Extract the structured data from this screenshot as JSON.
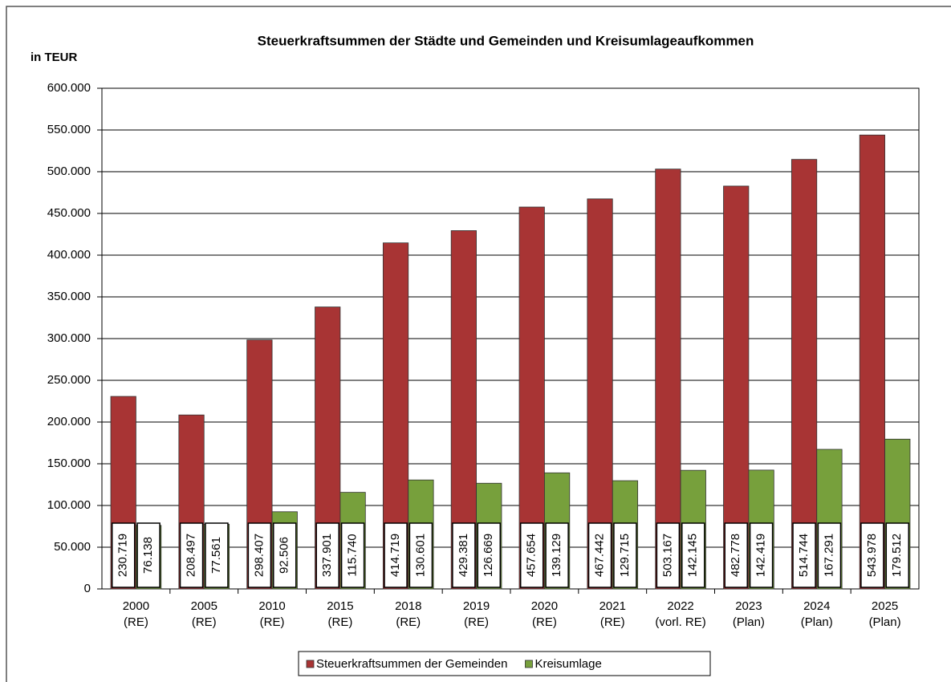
{
  "chart_data": {
    "type": "bar",
    "title": "Steuerkraftsummen der Städte und Gemeinden und Kreisumlageaufkommen",
    "y_axis_label": "in TEUR",
    "categories": [
      [
        "2000",
        "(RE)"
      ],
      [
        "2005",
        "(RE)"
      ],
      [
        "2010",
        "(RE)"
      ],
      [
        "2015",
        "(RE)"
      ],
      [
        "2018",
        "(RE)"
      ],
      [
        "2019",
        "(RE)"
      ],
      [
        "2020",
        "(RE)"
      ],
      [
        "2021",
        "(RE)"
      ],
      [
        "2022",
        "(vorl. RE)"
      ],
      [
        "2023",
        "(Plan)"
      ],
      [
        "2024",
        "(Plan)"
      ],
      [
        "2025",
        "(Plan)"
      ]
    ],
    "series": [
      {
        "name": "Steuerkraftsummen der Gemeinden",
        "color": "#a83434",
        "values": [
          230719,
          208497,
          298407,
          337901,
          414719,
          429381,
          457654,
          467442,
          503167,
          482778,
          514744,
          543978
        ],
        "value_labels": [
          "230.719",
          "208.497",
          "298.407",
          "337.901",
          "414.719",
          "429.381",
          "457.654",
          "467.442",
          "503.167",
          "482.778",
          "514.744",
          "543.978"
        ]
      },
      {
        "name": "Kreisumlage",
        "color": "#77a03c",
        "values": [
          76138,
          77561,
          92506,
          115740,
          130601,
          126669,
          139129,
          129715,
          142145,
          142419,
          167291,
          179512
        ],
        "value_labels": [
          "76.138",
          "77.561",
          "92.506",
          "115.740",
          "130.601",
          "126.669",
          "139.129",
          "129.715",
          "142.145",
          "142.419",
          "167.291",
          "179.512"
        ]
      }
    ],
    "ylim": [
      0,
      600000
    ],
    "yticks": [
      0,
      {
        "value": 50000,
        "label": "50.000"
      },
      {
        "value": 100000,
        "label": "100.000"
      },
      {
        "value": 150000,
        "label": "150.000"
      },
      {
        "value": 200000,
        "label": "200.000"
      },
      {
        "value": 250000,
        "label": "250.000"
      },
      {
        "value": 300000,
        "label": "300.000"
      },
      {
        "value": 350000,
        "label": "350.000"
      },
      {
        "value": 400000,
        "label": "400.000"
      },
      {
        "value": 450000,
        "label": "450.000"
      },
      {
        "value": 500000,
        "label": "500.000"
      },
      {
        "value": 550000,
        "label": "550.000"
      },
      {
        "value": 600000,
        "label": "600.000"
      }
    ],
    "grid": true,
    "legend": "bottom"
  }
}
